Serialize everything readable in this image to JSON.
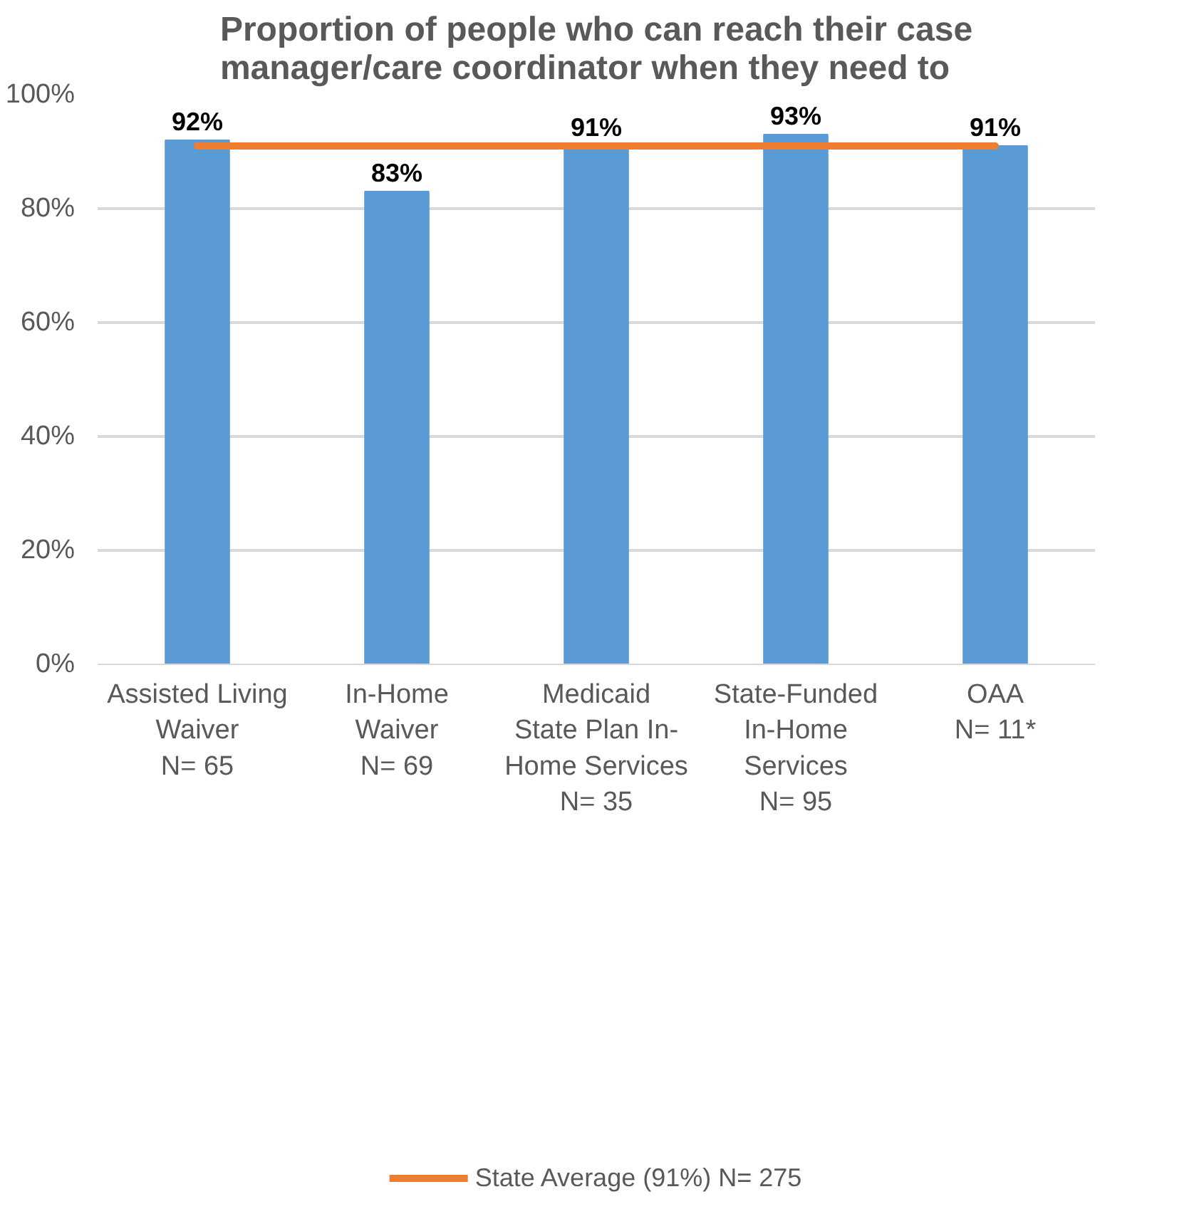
{
  "chart_data": {
    "type": "bar",
    "title": "Proportion of people who can reach their case\nmanager/care coordinator when they need to",
    "categories": [
      "Assisted Living\nWaiver\nN= 65",
      "In-Home\nWaiver\nN= 69",
      "Medicaid\nState Plan In-\nHome Services\nN= 35",
      "State-Funded\nIn-Home\nServices\nN= 95",
      "OAA\nN= 11*"
    ],
    "series": [
      {
        "color": "#5b9bd5",
        "values": [
          92,
          83,
          91,
          93,
          91
        ],
        "value_labels": [
          "92%",
          "83%",
          "91%",
          "93%",
          "91%"
        ]
      },
      {
        "type": "line",
        "name": "State Average (91%) N= 275",
        "color": "#ed7d31",
        "values": [
          91,
          91,
          91,
          91,
          91
        ]
      }
    ],
    "ylim": [
      0,
      100
    ],
    "yticks": [
      {
        "value": 0,
        "label": "0%"
      },
      {
        "value": 20,
        "label": "20%"
      },
      {
        "value": 40,
        "label": "40%"
      },
      {
        "value": 60,
        "label": "60%"
      },
      {
        "value": 80,
        "label": "80%"
      },
      {
        "value": 100,
        "label": "100%"
      }
    ],
    "grid": "y",
    "legend": "bottom"
  }
}
